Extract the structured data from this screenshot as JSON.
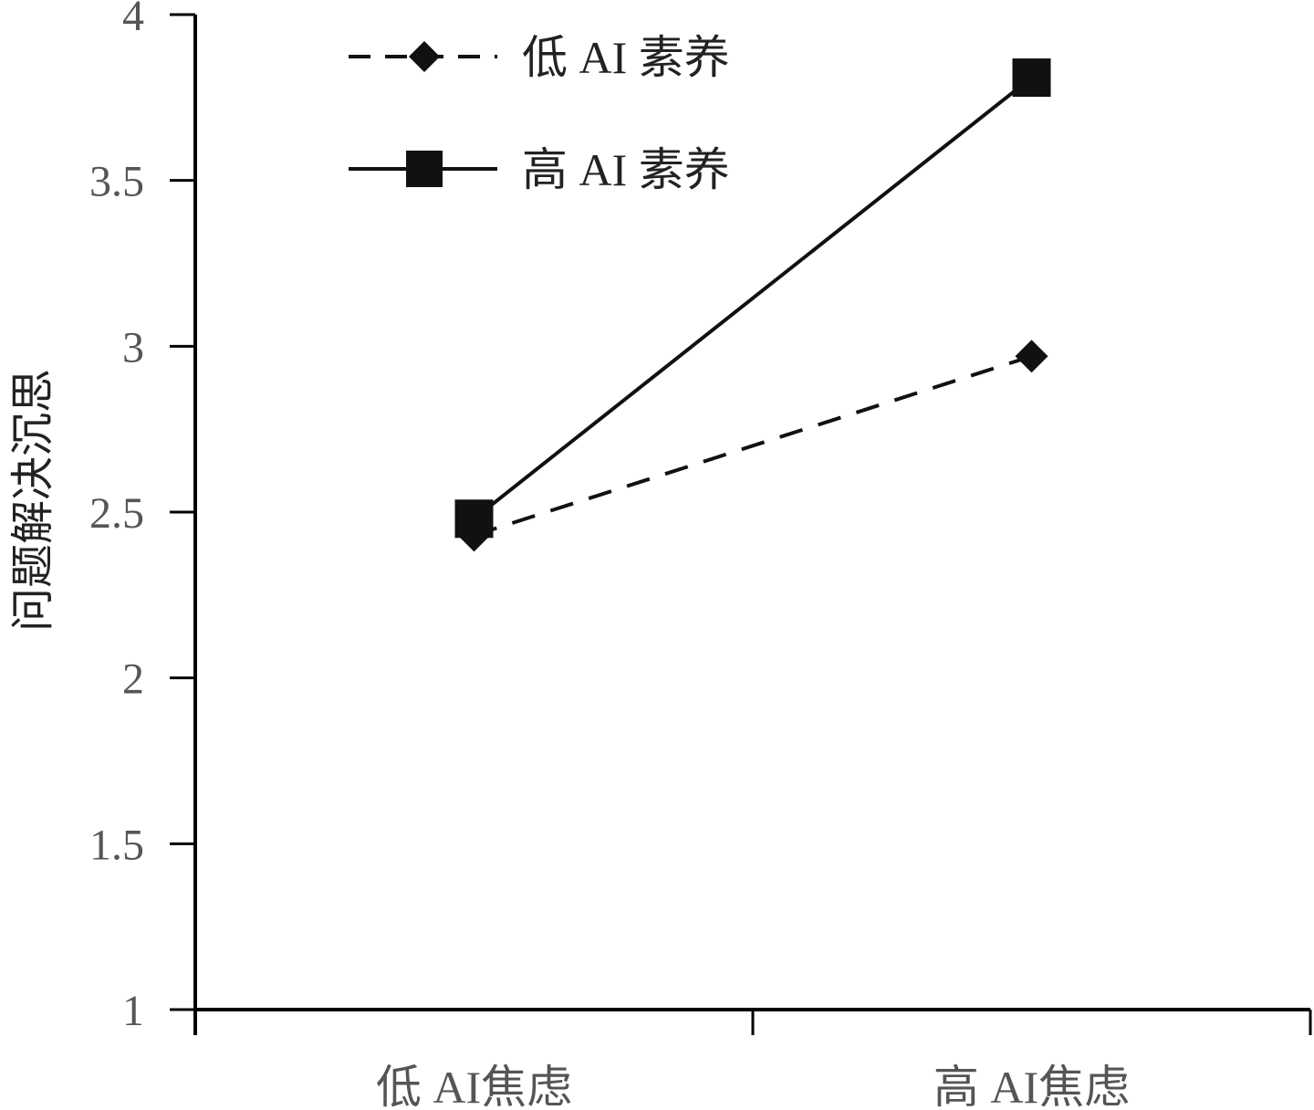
{
  "chart_data": {
    "type": "line",
    "title": "",
    "xlabel": "",
    "ylabel": "问题解决沉思",
    "ylim": [
      1,
      4
    ],
    "yticks": [
      "1",
      "1.5",
      "2",
      "2.5",
      "3",
      "3.5",
      "4"
    ],
    "categories": [
      "低 AI焦虑",
      "高 AI焦虑"
    ],
    "grid": false,
    "legend_position": "top-left",
    "series": [
      {
        "name": "低 AI 素养",
        "values": [
          2.43,
          2.97
        ],
        "line_style": "dashed",
        "marker": "diamond",
        "color": "#111111"
      },
      {
        "name": "高 AI 素养",
        "values": [
          2.48,
          3.81
        ],
        "line_style": "solid",
        "marker": "square",
        "color": "#111111"
      }
    ]
  }
}
